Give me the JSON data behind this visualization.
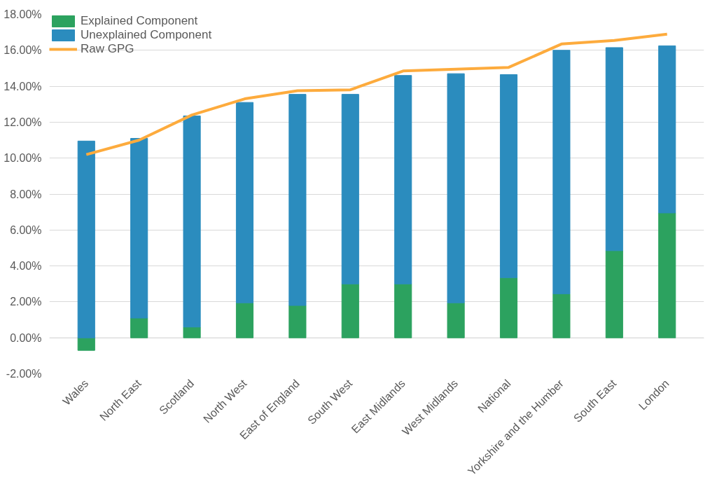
{
  "chart_data": {
    "type": "bar",
    "stacked": true,
    "categories": [
      "Wales",
      "North East",
      "Scotland",
      "North West",
      "East of England",
      "South West",
      "East Midlands",
      "West Midlands",
      "National",
      "Yorkshire and the Humber",
      "South East",
      "London"
    ],
    "series": [
      {
        "name": "Explained Component",
        "color": "#2ca25f",
        "values": [
          -0.7,
          1.1,
          0.6,
          1.95,
          1.8,
          3.0,
          3.0,
          1.95,
          3.35,
          2.45,
          4.85,
          6.95
        ]
      },
      {
        "name": "Unexplained Component",
        "color": "#2b8cbe",
        "values": [
          10.95,
          10.0,
          11.75,
          11.15,
          11.75,
          10.55,
          11.6,
          12.75,
          11.3,
          13.55,
          11.3,
          9.3
        ]
      },
      {
        "name": "Raw GPG",
        "type": "line",
        "color": "#fdab3d",
        "values": [
          10.2,
          11.0,
          12.4,
          13.3,
          13.75,
          13.8,
          14.85,
          14.95,
          15.05,
          16.35,
          16.55,
          16.9
        ]
      }
    ],
    "ylim": [
      -2,
      18
    ],
    "yticks": [
      {
        "value": -2,
        "label": "-2.00%"
      },
      {
        "value": 0,
        "label": "0.00%"
      },
      {
        "value": 2,
        "label": "2.00%"
      },
      {
        "value": 4,
        "label": "4.00%"
      },
      {
        "value": 6,
        "label": "6.00%"
      },
      {
        "value": 8,
        "label": "8.00%"
      },
      {
        "value": 10,
        "label": "10.00%"
      },
      {
        "value": 12,
        "label": "12.00%"
      },
      {
        "value": 14,
        "label": "14.00%"
      },
      {
        "value": 16,
        "label": "16.00%"
      },
      {
        "value": 18,
        "label": "18.00%"
      }
    ],
    "grid": "y",
    "legend": "top left"
  }
}
